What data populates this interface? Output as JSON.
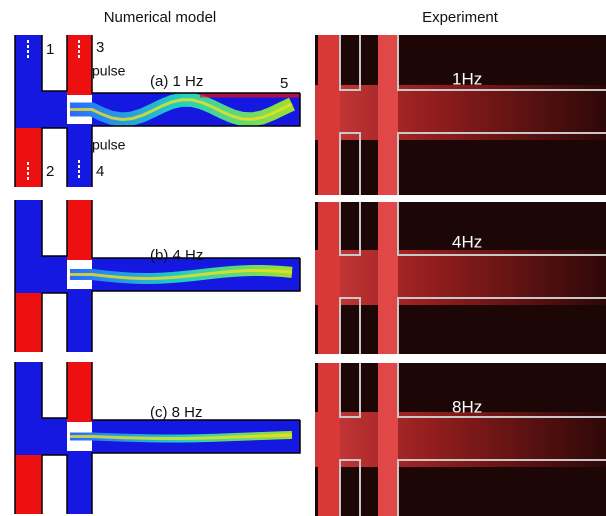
{
  "headers": {
    "left": "Numerical model",
    "right": "Experiment"
  },
  "panels": [
    {
      "model_label": "(a) 1 Hz",
      "experiment_label": "1Hz"
    },
    {
      "model_label": "(b) 4 Hz",
      "experiment_label": "4Hz"
    },
    {
      "model_label": "(c) 8 Hz",
      "experiment_label": "8Hz"
    }
  ],
  "port_labels": [
    "1",
    "2",
    "3",
    "4",
    "5"
  ],
  "pulse_labels": [
    "pulse",
    "pulse"
  ]
}
